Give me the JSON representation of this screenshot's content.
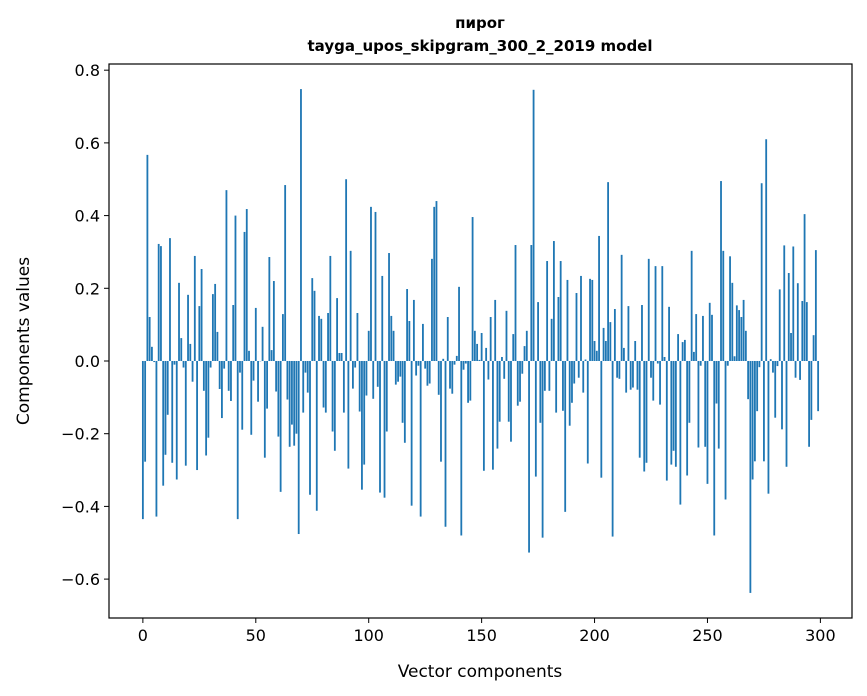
{
  "chart_data": {
    "type": "bar",
    "title": "пирог",
    "subtitle": "tayga_upos_skipgram_300_2_2019 model",
    "xlabel": "Vector components",
    "ylabel": "Components values",
    "xlim": [
      -15,
      314
    ],
    "ylim": [
      -0.707,
      0.817
    ],
    "xticks": [
      0,
      50,
      100,
      150,
      200,
      250,
      300
    ],
    "xtick_labels": [
      "0",
      "50",
      "100",
      "150",
      "200",
      "250",
      "300"
    ],
    "yticks": [
      -0.6,
      -0.4,
      -0.2,
      0.0,
      0.2,
      0.4,
      0.6,
      0.8
    ],
    "ytick_labels": [
      "−0.6",
      "−0.4",
      "−0.2",
      "0.0",
      "0.2",
      "0.4",
      "0.6",
      "0.8"
    ],
    "grid": false,
    "bar_color": "#1f77b4",
    "values": [
      -0.435,
      -0.277,
      0.567,
      0.121,
      0.039,
      -0.003,
      -0.428,
      0.322,
      0.316,
      -0.343,
      -0.258,
      -0.148,
      0.338,
      -0.28,
      -0.01,
      -0.326,
      0.215,
      0.063,
      -0.018,
      -0.288,
      0.182,
      0.047,
      -0.057,
      0.289,
      -0.3,
      0.151,
      0.253,
      -0.082,
      -0.26,
      -0.211,
      -0.018,
      0.184,
      0.212,
      0.08,
      -0.077,
      -0.157,
      -0.021,
      0.47,
      -0.082,
      -0.11,
      0.154,
      0.4,
      -0.435,
      -0.032,
      -0.189,
      0.355,
      0.418,
      0.028,
      -0.203,
      -0.054,
      0.146,
      -0.112,
      0.0,
      0.094,
      -0.266,
      -0.131,
      0.286,
      0.03,
      0.22,
      -0.084,
      -0.208,
      -0.36,
      0.129,
      0.484,
      -0.106,
      -0.236,
      -0.175,
      -0.233,
      -0.2,
      -0.476,
      0.748,
      -0.142,
      -0.032,
      -0.087,
      -0.368,
      0.228,
      0.193,
      -0.412,
      0.124,
      0.116,
      -0.128,
      -0.142,
      0.132,
      0.289,
      -0.194,
      -0.247,
      0.173,
      0.022,
      0.022,
      -0.142,
      0.5,
      -0.296,
      0.303,
      -0.076,
      -0.018,
      0.132,
      -0.139,
      -0.354,
      -0.285,
      -0.095,
      0.083,
      0.424,
      -0.104,
      0.41,
      -0.071,
      -0.362,
      0.234,
      -0.376,
      -0.194,
      0.297,
      0.124,
      0.083,
      -0.065,
      -0.057,
      -0.043,
      -0.17,
      -0.225,
      0.198,
      0.11,
      -0.398,
      0.168,
      -0.04,
      -0.013,
      -0.428,
      0.102,
      -0.021,
      -0.068,
      -0.062,
      0.281,
      0.424,
      0.44,
      -0.093,
      -0.277,
      0.006,
      -0.456,
      0.121,
      -0.076,
      -0.09,
      -0.01,
      0.014,
      0.204,
      -0.48,
      -0.024,
      -0.007,
      -0.115,
      -0.109,
      0.396,
      0.083,
      0.047,
      0.003,
      0.077,
      -0.302,
      0.036,
      -0.051,
      0.121,
      -0.299,
      0.168,
      -0.241,
      -0.167,
      0.011,
      -0.049,
      0.138,
      -0.167,
      -0.222,
      0.074,
      0.319,
      -0.123,
      -0.112,
      -0.035,
      0.041,
      0.083,
      -0.527,
      0.319,
      0.746,
      -0.318,
      0.162,
      -0.17,
      -0.486,
      -0.082,
      0.275,
      -0.082,
      0.116,
      0.33,
      -0.142,
      0.176,
      0.275,
      -0.137,
      -0.415,
      0.223,
      -0.178,
      -0.115,
      -0.062,
      0.187,
      -0.046,
      0.234,
      -0.087,
      0.004,
      -0.282,
      0.226,
      0.223,
      0.055,
      0.028,
      0.344,
      -0.321,
      0.091,
      0.055,
      0.492,
      0.107,
      -0.483,
      0.143,
      -0.046,
      -0.049,
      0.292,
      0.036,
      -0.087,
      0.151,
      -0.079,
      -0.073,
      0.055,
      -0.079,
      -0.266,
      0.154,
      -0.304,
      -0.28,
      0.281,
      -0.046,
      -0.109,
      0.261,
      -0.007,
      -0.12,
      0.261,
      0.011,
      -0.329,
      0.149,
      -0.285,
      -0.247,
      -0.291,
      0.074,
      -0.395,
      0.052,
      0.058,
      -0.315,
      -0.17,
      0.303,
      0.025,
      0.129,
      -0.238,
      -0.013,
      0.124,
      -0.236,
      -0.338,
      0.16,
      0.127,
      -0.48,
      -0.117,
      -0.241,
      0.495,
      0.303,
      -0.381,
      -0.013,
      0.288,
      0.215,
      0.013,
      0.153,
      0.14,
      0.121,
      0.168,
      0.083,
      -0.105,
      -0.638,
      -0.326,
      -0.276,
      -0.138,
      -0.017,
      0.489,
      -0.276,
      0.61,
      -0.365,
      0.005,
      -0.032,
      -0.156,
      -0.014,
      0.197,
      -0.188,
      0.318,
      -0.291,
      0.242,
      0.077,
      0.315,
      -0.046,
      0.214,
      -0.052,
      0.165,
      0.404,
      0.162,
      -0.236,
      -0.162,
      0.071,
      0.305,
      -0.138
    ]
  }
}
